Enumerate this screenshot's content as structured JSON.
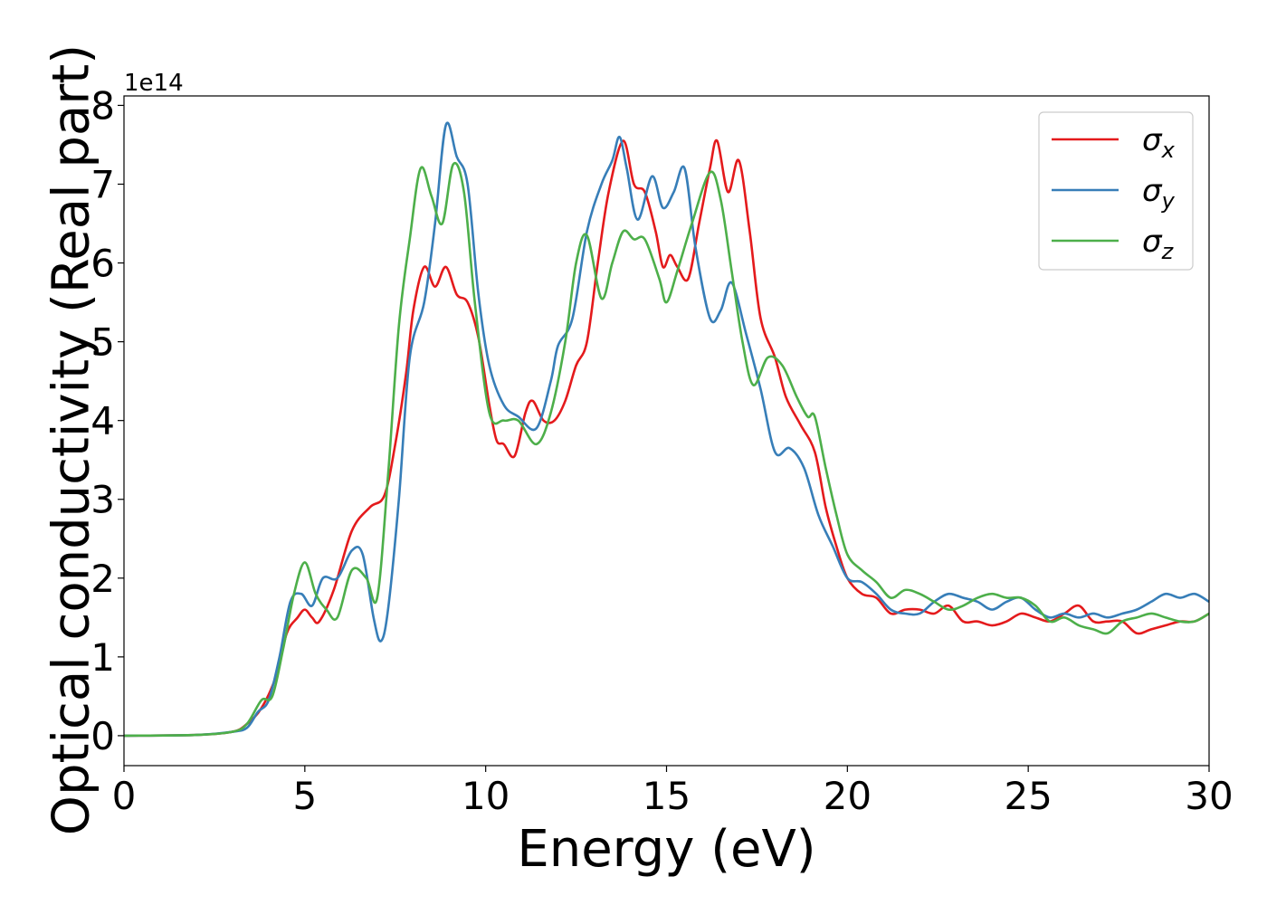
{
  "chart_data": {
    "type": "line",
    "title": "",
    "xlabel": "Energy (eV)",
    "ylabel": "Optical conductivity (Real part)",
    "y_offset_label": "1e14",
    "y_scale_factor": 100000000000000.0,
    "xlim": [
      0,
      30
    ],
    "ylim": [
      -0.38,
      8.12
    ],
    "x_ticks": [
      0,
      5,
      10,
      15,
      20,
      25,
      30
    ],
    "y_ticks": [
      0,
      1,
      2,
      3,
      4,
      5,
      6,
      7,
      8
    ],
    "grid": false,
    "legend_position": "top-right",
    "series": [
      {
        "name": "σx",
        "sub": "x",
        "color": "#e41a1c",
        "points": [
          [
            0,
            0
          ],
          [
            2,
            0.01
          ],
          [
            3,
            0.05
          ],
          [
            3.4,
            0.15
          ],
          [
            3.8,
            0.35
          ],
          [
            4.2,
            0.75
          ],
          [
            4.5,
            1.3
          ],
          [
            4.8,
            1.5
          ],
          [
            5,
            1.6
          ],
          [
            5.2,
            1.5
          ],
          [
            5.4,
            1.45
          ],
          [
            5.8,
            1.85
          ],
          [
            6.3,
            2.6
          ],
          [
            6.8,
            2.9
          ],
          [
            7.2,
            3.05
          ],
          [
            7.5,
            3.7
          ],
          [
            7.8,
            4.6
          ],
          [
            8,
            5.4
          ],
          [
            8.3,
            5.95
          ],
          [
            8.6,
            5.7
          ],
          [
            8.9,
            5.95
          ],
          [
            9.2,
            5.6
          ],
          [
            9.5,
            5.5
          ],
          [
            9.8,
            5.05
          ],
          [
            10.1,
            4.2
          ],
          [
            10.3,
            3.75
          ],
          [
            10.5,
            3.7
          ],
          [
            10.8,
            3.55
          ],
          [
            11.1,
            4.1
          ],
          [
            11.3,
            4.25
          ],
          [
            11.6,
            4.0
          ],
          [
            11.9,
            4.0
          ],
          [
            12.2,
            4.25
          ],
          [
            12.5,
            4.7
          ],
          [
            12.8,
            5.0
          ],
          [
            13.1,
            6.0
          ],
          [
            13.4,
            6.9
          ],
          [
            13.8,
            7.55
          ],
          [
            14.1,
            7.0
          ],
          [
            14.4,
            6.9
          ],
          [
            14.7,
            6.4
          ],
          [
            14.9,
            5.95
          ],
          [
            15.1,
            6.1
          ],
          [
            15.3,
            5.95
          ],
          [
            15.6,
            5.8
          ],
          [
            15.9,
            6.5
          ],
          [
            16.2,
            7.2
          ],
          [
            16.4,
            7.55
          ],
          [
            16.7,
            6.9
          ],
          [
            17,
            7.3
          ],
          [
            17.3,
            6.4
          ],
          [
            17.6,
            5.3
          ],
          [
            18,
            4.8
          ],
          [
            18.3,
            4.3
          ],
          [
            18.7,
            3.95
          ],
          [
            19.1,
            3.6
          ],
          [
            19.4,
            2.9
          ],
          [
            19.7,
            2.4
          ],
          [
            20,
            2.0
          ],
          [
            20.4,
            1.8
          ],
          [
            20.8,
            1.75
          ],
          [
            21.2,
            1.55
          ],
          [
            21.6,
            1.6
          ],
          [
            22,
            1.6
          ],
          [
            22.4,
            1.55
          ],
          [
            22.8,
            1.65
          ],
          [
            23.2,
            1.45
          ],
          [
            23.6,
            1.45
          ],
          [
            24,
            1.4
          ],
          [
            24.4,
            1.45
          ],
          [
            24.8,
            1.55
          ],
          [
            25.2,
            1.5
          ],
          [
            25.6,
            1.45
          ],
          [
            26,
            1.55
          ],
          [
            26.4,
            1.65
          ],
          [
            26.8,
            1.45
          ],
          [
            27.2,
            1.45
          ],
          [
            27.6,
            1.45
          ],
          [
            28,
            1.3
          ],
          [
            28.4,
            1.35
          ],
          [
            28.8,
            1.4
          ],
          [
            29.2,
            1.45
          ],
          [
            29.6,
            1.45
          ],
          [
            30,
            1.55
          ]
        ]
      },
      {
        "name": "σy",
        "sub": "y",
        "color": "#377eb8",
        "points": [
          [
            0,
            0
          ],
          [
            2,
            0.01
          ],
          [
            3,
            0.05
          ],
          [
            3.4,
            0.1
          ],
          [
            3.7,
            0.3
          ],
          [
            4,
            0.45
          ],
          [
            4.3,
            1.0
          ],
          [
            4.6,
            1.7
          ],
          [
            4.9,
            1.8
          ],
          [
            5.2,
            1.65
          ],
          [
            5.5,
            2.0
          ],
          [
            5.9,
            2.0
          ],
          [
            6.3,
            2.35
          ],
          [
            6.6,
            2.3
          ],
          [
            6.9,
            1.5
          ],
          [
            7.1,
            1.2
          ],
          [
            7.3,
            1.6
          ],
          [
            7.6,
            3.0
          ],
          [
            7.9,
            4.8
          ],
          [
            8.3,
            5.5
          ],
          [
            8.6,
            6.5
          ],
          [
            8.9,
            7.75
          ],
          [
            9.2,
            7.35
          ],
          [
            9.5,
            7.0
          ],
          [
            9.8,
            5.6
          ],
          [
            10.1,
            4.7
          ],
          [
            10.5,
            4.2
          ],
          [
            10.9,
            4.05
          ],
          [
            11.4,
            3.9
          ],
          [
            11.8,
            4.5
          ],
          [
            12,
            4.95
          ],
          [
            12.4,
            5.3
          ],
          [
            12.8,
            6.4
          ],
          [
            13.2,
            7.0
          ],
          [
            13.5,
            7.3
          ],
          [
            13.7,
            7.6
          ],
          [
            13.9,
            7.2
          ],
          [
            14.2,
            6.55
          ],
          [
            14.6,
            7.1
          ],
          [
            14.9,
            6.7
          ],
          [
            15.2,
            6.9
          ],
          [
            15.5,
            7.2
          ],
          [
            15.8,
            6.2
          ],
          [
            16.2,
            5.3
          ],
          [
            16.5,
            5.4
          ],
          [
            16.8,
            5.75
          ],
          [
            17.2,
            5.1
          ],
          [
            17.6,
            4.4
          ],
          [
            18,
            3.6
          ],
          [
            18.4,
            3.65
          ],
          [
            18.8,
            3.4
          ],
          [
            19.2,
            2.8
          ],
          [
            19.6,
            2.4
          ],
          [
            20,
            2.0
          ],
          [
            20.4,
            1.95
          ],
          [
            20.8,
            1.8
          ],
          [
            21.2,
            1.6
          ],
          [
            21.6,
            1.55
          ],
          [
            22,
            1.55
          ],
          [
            22.4,
            1.7
          ],
          [
            22.8,
            1.8
          ],
          [
            23.2,
            1.75
          ],
          [
            23.6,
            1.7
          ],
          [
            24,
            1.6
          ],
          [
            24.4,
            1.7
          ],
          [
            24.8,
            1.75
          ],
          [
            25.2,
            1.6
          ],
          [
            25.6,
            1.5
          ],
          [
            26,
            1.55
          ],
          [
            26.4,
            1.5
          ],
          [
            26.8,
            1.55
          ],
          [
            27.2,
            1.5
          ],
          [
            27.6,
            1.55
          ],
          [
            28,
            1.6
          ],
          [
            28.4,
            1.7
          ],
          [
            28.8,
            1.8
          ],
          [
            29.2,
            1.75
          ],
          [
            29.6,
            1.8
          ],
          [
            30,
            1.7
          ]
        ]
      },
      {
        "name": "σz",
        "sub": "z",
        "color": "#4daf4a",
        "points": [
          [
            0,
            0
          ],
          [
            2,
            0.01
          ],
          [
            3,
            0.05
          ],
          [
            3.4,
            0.15
          ],
          [
            3.8,
            0.45
          ],
          [
            4.1,
            0.5
          ],
          [
            4.4,
            1.1
          ],
          [
            4.7,
            1.8
          ],
          [
            5,
            2.2
          ],
          [
            5.3,
            1.8
          ],
          [
            5.6,
            1.6
          ],
          [
            5.9,
            1.5
          ],
          [
            6.3,
            2.1
          ],
          [
            6.7,
            2.0
          ],
          [
            7,
            1.75
          ],
          [
            7.3,
            3.3
          ],
          [
            7.6,
            5.2
          ],
          [
            7.9,
            6.3
          ],
          [
            8.2,
            7.2
          ],
          [
            8.5,
            6.85
          ],
          [
            8.8,
            6.5
          ],
          [
            9.1,
            7.25
          ],
          [
            9.4,
            6.9
          ],
          [
            9.7,
            5.5
          ],
          [
            10.1,
            4.1
          ],
          [
            10.5,
            4.0
          ],
          [
            10.9,
            4.0
          ],
          [
            11.4,
            3.7
          ],
          [
            11.8,
            4.1
          ],
          [
            12.2,
            5.0
          ],
          [
            12.5,
            6.0
          ],
          [
            12.8,
            6.35
          ],
          [
            13.2,
            5.55
          ],
          [
            13.5,
            6.0
          ],
          [
            13.8,
            6.4
          ],
          [
            14.1,
            6.3
          ],
          [
            14.4,
            6.3
          ],
          [
            14.8,
            5.8
          ],
          [
            15,
            5.5
          ],
          [
            15.3,
            5.9
          ],
          [
            15.7,
            6.5
          ],
          [
            16.2,
            7.15
          ],
          [
            16.5,
            6.8
          ],
          [
            16.8,
            5.9
          ],
          [
            17.1,
            5.0
          ],
          [
            17.4,
            4.45
          ],
          [
            17.8,
            4.8
          ],
          [
            18.2,
            4.7
          ],
          [
            18.6,
            4.3
          ],
          [
            18.9,
            4.05
          ],
          [
            19.1,
            4.05
          ],
          [
            19.4,
            3.4
          ],
          [
            19.7,
            2.8
          ],
          [
            20,
            2.3
          ],
          [
            20.4,
            2.1
          ],
          [
            20.8,
            1.95
          ],
          [
            21.2,
            1.75
          ],
          [
            21.6,
            1.85
          ],
          [
            22,
            1.8
          ],
          [
            22.4,
            1.7
          ],
          [
            22.8,
            1.6
          ],
          [
            23.2,
            1.65
          ],
          [
            23.6,
            1.75
          ],
          [
            24,
            1.8
          ],
          [
            24.4,
            1.75
          ],
          [
            24.8,
            1.75
          ],
          [
            25.2,
            1.65
          ],
          [
            25.6,
            1.45
          ],
          [
            26,
            1.5
          ],
          [
            26.4,
            1.4
          ],
          [
            26.8,
            1.35
          ],
          [
            27.2,
            1.3
          ],
          [
            27.6,
            1.45
          ],
          [
            28,
            1.5
          ],
          [
            28.4,
            1.55
          ],
          [
            28.8,
            1.5
          ],
          [
            29.2,
            1.45
          ],
          [
            29.6,
            1.45
          ],
          [
            30,
            1.55
          ]
        ]
      }
    ]
  }
}
